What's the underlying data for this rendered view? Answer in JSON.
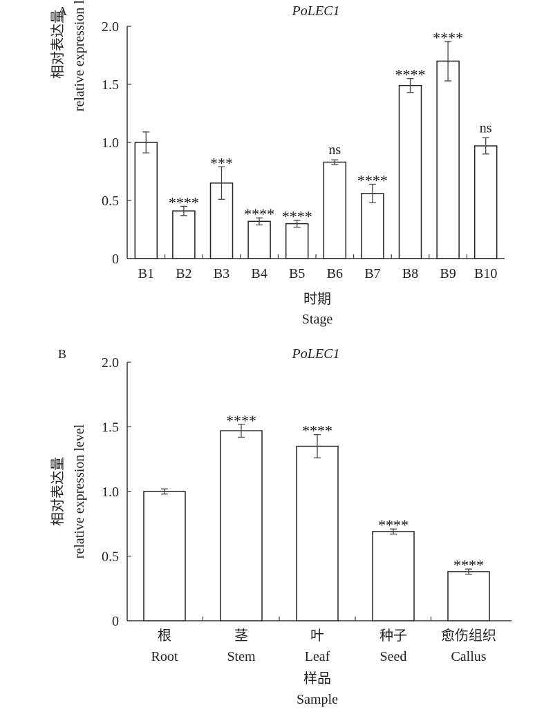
{
  "chart_data": [
    {
      "type": "bar",
      "panel_label": "A",
      "title": "PoLEC1",
      "ylabel_cn": "相对表达量",
      "ylabel": "relative expression level",
      "xlabel_cn": "时期",
      "xlabel": "Stage",
      "ylim": [
        0,
        2.0
      ],
      "yticks": [
        0,
        0.5,
        1.0,
        1.5,
        2.0
      ],
      "ytick_labels": [
        "0",
        "0.5",
        "1.0",
        "1.5",
        "2.0"
      ],
      "categories": [
        "B1",
        "B2",
        "B3",
        "B4",
        "B5",
        "B6",
        "B7",
        "B8",
        "B9",
        "B10"
      ],
      "values": [
        1.0,
        0.41,
        0.65,
        0.32,
        0.3,
        0.83,
        0.56,
        1.49,
        1.7,
        0.97
      ],
      "errors": [
        0.09,
        0.04,
        0.14,
        0.03,
        0.03,
        0.02,
        0.08,
        0.06,
        0.17,
        0.07
      ],
      "significance": [
        "",
        "****",
        "***",
        "****",
        "****",
        "ns",
        "****",
        "****",
        "****",
        "ns"
      ]
    },
    {
      "type": "bar",
      "panel_label": "B",
      "title": "PoLEC1",
      "ylabel_cn": "相对表达量",
      "ylabel": "relative expression level",
      "xlabel_cn": "样品",
      "xlabel": "Sample",
      "ylim": [
        0,
        2.0
      ],
      "yticks": [
        0,
        0.5,
        1.0,
        1.5,
        2.0
      ],
      "ytick_labels": [
        "0",
        "0.5",
        "1.0",
        "1.5",
        "2.0"
      ],
      "categories_cn": [
        "根",
        "茎",
        "叶",
        "种子",
        "愈伤组织"
      ],
      "categories": [
        "Root",
        "Stem",
        "Leaf",
        "Seed",
        "Callus"
      ],
      "values": [
        1.0,
        1.47,
        1.35,
        0.69,
        0.38
      ],
      "errors": [
        0.02,
        0.05,
        0.09,
        0.02,
        0.02
      ],
      "significance": [
        "",
        "****",
        "****",
        "****",
        "****"
      ]
    }
  ]
}
